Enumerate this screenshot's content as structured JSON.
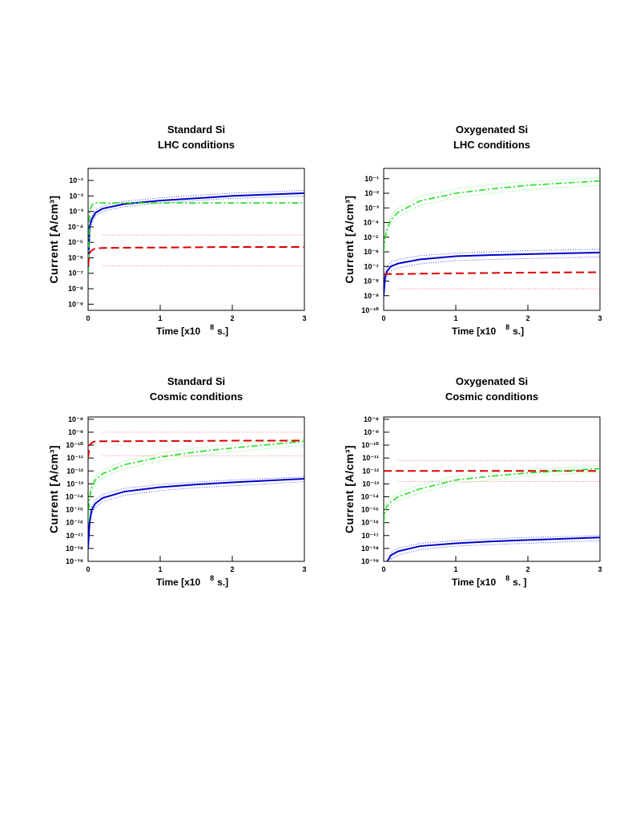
{
  "chart_data": [
    {
      "type": "line",
      "title": "Standard Si",
      "subtitle": "LHC conditions",
      "x_label": "Time [x10",
      "x_label_exponent": "8",
      "x_label_unit": "s.]",
      "y_label": "Current [A/cm³]",
      "log_y": true,
      "xlim": [
        0,
        3
      ],
      "xticks": [
        0,
        1,
        2,
        3
      ],
      "ylim": [
        4e-10,
        0.6
      ],
      "yticks": [
        {
          "value": 0.1,
          "label": "10⁻¹"
        },
        {
          "value": 0.01,
          "label": "10⁻²"
        },
        {
          "value": 0.001,
          "label": "10⁻³"
        },
        {
          "value": 0.0001,
          "label": "10⁻⁴"
        },
        {
          "value": 1e-05,
          "label": "10⁻⁵"
        },
        {
          "value": 1e-06,
          "label": "10⁻⁶"
        },
        {
          "value": 1e-07,
          "label": "10⁻⁷"
        },
        {
          "value": 1e-08,
          "label": "10⁻⁸"
        },
        {
          "value": 1e-09,
          "label": "10⁻⁹"
        }
      ],
      "x": [
        0,
        0.02,
        0.05,
        0.1,
        0.2,
        0.5,
        1,
        1.5,
        2,
        3
      ],
      "series": [
        {
          "color": "#3333ff",
          "dash": "dotted",
          "values": [
            null,
            0.0002,
            0.0005,
            0.0012,
            0.0022,
            0.0045,
            0.0075,
            0.011,
            0.015,
            0.023
          ]
        },
        {
          "color": "#3333ff",
          "dash": "dotted",
          "values": [
            null,
            5e-05,
            0.00015,
            0.0005,
            0.001,
            0.002,
            0.0035,
            0.005,
            0.007,
            0.01
          ]
        },
        {
          "color": "#ff6666",
          "dash": "dotted",
          "values": [
            null,
            null,
            null,
            null,
            3e-05,
            3e-05,
            3e-05,
            3e-05,
            3e-05,
            3e-05
          ]
        },
        {
          "color": "#ff6666",
          "dash": "dotted",
          "values": [
            null,
            null,
            null,
            null,
            3e-07,
            3e-07,
            3e-07,
            3e-07,
            3e-07,
            3e-07
          ]
        },
        {
          "color": "#0000c8",
          "dash": "solid",
          "values": [
            1e-07,
            0.0001,
            0.0003,
            0.0008,
            0.0015,
            0.003,
            0.005,
            0.007,
            0.01,
            0.015
          ]
        },
        {
          "color": "#22dd22",
          "dash": "dashdot",
          "values": [
            1e-07,
            0.001,
            0.0025,
            0.0035,
            0.0035,
            0.0035,
            0.0035,
            0.0035,
            0.0035,
            0.0035
          ]
        },
        {
          "color": "#dd0000",
          "dash": "dashed",
          "values": [
            3e-07,
            2e-06,
            3e-06,
            4e-06,
            4.3e-06,
            4.5e-06,
            4.6e-06,
            4.8e-06,
            5e-06,
            5e-06
          ]
        }
      ]
    },
    {
      "type": "line",
      "title": "Oxygenated Si",
      "subtitle": "LHC conditions",
      "x_label": "Time [x10",
      "x_label_exponent": "8",
      "x_label_unit": "s.]",
      "y_label": "Current [A/cm³]",
      "log_y": true,
      "xlim": [
        0,
        3
      ],
      "xticks": [
        0,
        1,
        2,
        3
      ],
      "ylim": [
        1e-10,
        0.5
      ],
      "yticks": [
        {
          "value": 0.1,
          "label": "10⁻¹"
        },
        {
          "value": 0.01,
          "label": "10⁻²"
        },
        {
          "value": 0.001,
          "label": "10⁻³"
        },
        {
          "value": 0.0001,
          "label": "10⁻⁴"
        },
        {
          "value": 1e-05,
          "label": "10⁻⁵"
        },
        {
          "value": 1e-06,
          "label": "10⁻⁶"
        },
        {
          "value": 1e-07,
          "label": "10⁻⁷"
        },
        {
          "value": 1e-08,
          "label": "10⁻⁸"
        },
        {
          "value": 1e-09,
          "label": "10⁻⁹"
        },
        {
          "value": 1e-10,
          "label": "10⁻¹⁰"
        }
      ],
      "x": [
        0,
        0.02,
        0.05,
        0.1,
        0.2,
        0.5,
        1,
        1.5,
        2,
        3
      ],
      "series": [
        {
          "color": "#66ee66",
          "dash": "dotted",
          "values": [
            null,
            2e-05,
            8e-05,
            0.0003,
            0.001,
            0.006,
            0.02,
            0.04,
            0.06,
            0.12
          ]
        },
        {
          "color": "#66ee66",
          "dash": "dotted",
          "values": [
            null,
            5e-06,
            2e-05,
            8e-05,
            0.00025,
            0.0015,
            0.005,
            0.01,
            0.018,
            0.035
          ]
        },
        {
          "color": "#3333ff",
          "dash": "dotted",
          "values": [
            null,
            4e-08,
            1e-07,
            2e-07,
            3e-07,
            5.5e-07,
            8e-07,
            1e-06,
            1.2e-06,
            1.5e-06
          ]
        },
        {
          "color": "#3333ff",
          "dash": "dotted",
          "values": [
            null,
            1e-08,
            2.5e-08,
            5e-08,
            8e-08,
            1.5e-07,
            2.5e-07,
            3e-07,
            3.5e-07,
            4.5e-07
          ]
        },
        {
          "color": "#ff6666",
          "dash": "dotted",
          "values": [
            null,
            null,
            null,
            null,
            3e-09,
            3e-09,
            3e-09,
            3e-09,
            3e-09,
            3e-09
          ]
        },
        {
          "color": "#22dd22",
          "dash": "dashdot",
          "values": [
            1e-06,
            1e-05,
            4e-05,
            0.00015,
            0.0005,
            0.003,
            0.01,
            0.02,
            0.035,
            0.07
          ]
        },
        {
          "color": "#0000c8",
          "dash": "solid",
          "values": [
            1e-09,
            2e-08,
            5e-08,
            1e-07,
            1.6e-07,
            3e-07,
            5e-07,
            6e-07,
            7e-07,
            9e-07
          ]
        },
        {
          "color": "#dd0000",
          "dash": "dashed",
          "values": [
            3e-08,
            3e-08,
            3e-08,
            3e-08,
            3e-08,
            3.2e-08,
            3.4e-08,
            3.6e-08,
            3.8e-08,
            4e-08
          ]
        }
      ]
    },
    {
      "type": "line",
      "title": "Standard Si",
      "subtitle": "Cosmic conditions",
      "x_label": "Time [x10",
      "x_label_exponent": "8",
      "x_label_unit": "s.]",
      "y_label": "Current [A/cm³]",
      "log_y": true,
      "xlim": [
        0,
        3
      ],
      "xticks": [
        0,
        1,
        2,
        3
      ],
      "ylim": [
        1e-19,
        1.5e-08
      ],
      "yticks": [
        {
          "value": 1e-08,
          "label": "10⁻⁸"
        },
        {
          "value": 1e-09,
          "label": "10⁻⁹"
        },
        {
          "value": 1e-10,
          "label": "10⁻¹⁰"
        },
        {
          "value": 1e-11,
          "label": "10⁻¹¹"
        },
        {
          "value": 1e-12,
          "label": "10⁻¹²"
        },
        {
          "value": 1e-13,
          "label": "10⁻¹³"
        },
        {
          "value": 1e-14,
          "label": "10⁻¹⁴"
        },
        {
          "value": 1e-15,
          "label": "10⁻¹⁵"
        },
        {
          "value": 1e-16,
          "label": "10⁻¹⁶"
        },
        {
          "value": 1e-17,
          "label": "10⁻¹⁷"
        },
        {
          "value": 1e-18,
          "label": "10⁻¹⁸"
        },
        {
          "value": 1e-19,
          "label": "10⁻¹⁹"
        }
      ],
      "x": [
        0,
        0.02,
        0.05,
        0.1,
        0.2,
        0.5,
        1,
        1.5,
        2,
        3
      ],
      "series": [
        {
          "color": "#ff6666",
          "dash": "dotted",
          "values": [
            null,
            null,
            null,
            null,
            1e-09,
            1e-09,
            1e-09,
            1e-09,
            1e-09,
            1e-09
          ]
        },
        {
          "color": "#ff6666",
          "dash": "dotted",
          "values": [
            null,
            null,
            null,
            null,
            1.5e-11,
            1.5e-11,
            1.5e-11,
            1.5e-11,
            1.5e-11,
            1.5e-11
          ]
        },
        {
          "color": "#66ee66",
          "dash": "dotted",
          "values": [
            null,
            2e-14,
            1e-13,
            4e-13,
            1.2e-12,
            6e-12,
            2.5e-11,
            6e-11,
            1.2e-10,
            3e-10
          ]
        },
        {
          "color": "#66ee66",
          "dash": "dotted",
          "values": [
            null,
            5e-15,
            2.5e-14,
            1e-13,
            3e-13,
            1.5e-12,
            6e-12,
            1.5e-11,
            3e-11,
            1e-10
          ]
        },
        {
          "color": "#3333ff",
          "dash": "dotted",
          "values": [
            null,
            2e-16,
            2e-15,
            6e-15,
            1.5e-14,
            4.5e-14,
            9e-14,
            1.4e-13,
            2e-13,
            3.5e-13
          ]
        },
        {
          "color": "#3333ff",
          "dash": "dotted",
          "values": [
            null,
            5e-17,
            5e-16,
            1.5e-15,
            4e-15,
            1.3e-14,
            3e-14,
            5e-14,
            7e-14,
            1.5e-13
          ]
        },
        {
          "color": "#dd0000",
          "dash": "dashed",
          "values": [
            1e-11,
            1e-10,
            1.5e-10,
            2e-10,
            2e-10,
            2e-10,
            2.1e-10,
            2.1e-10,
            2.2e-10,
            2.2e-10
          ]
        },
        {
          "color": "#22dd22",
          "dash": "dashdot",
          "values": [
            1e-16,
            1e-14,
            5e-14,
            2e-13,
            6e-13,
            3e-12,
            1.2e-11,
            3e-11,
            6e-11,
            2e-10
          ]
        },
        {
          "color": "#0000c8",
          "dash": "solid",
          "values": [
            1e-18,
            1e-16,
            1e-15,
            3e-15,
            8e-15,
            2.5e-14,
            5.5e-14,
            9e-14,
            1.3e-13,
            2.5e-13
          ]
        }
      ]
    },
    {
      "type": "line",
      "title": "Oxygenated Si",
      "subtitle": "Cosmic conditions",
      "x_label": "Time [x10",
      "x_label_exponent": "8",
      "x_label_unit": "s. ]",
      "y_label": "Current [A/cm³]",
      "log_y": true,
      "xlim": [
        0,
        3
      ],
      "xticks": [
        0,
        1,
        2,
        3
      ],
      "ylim": [
        1e-19,
        1.5e-08
      ],
      "yticks": [
        {
          "value": 1e-08,
          "label": "10⁻⁸"
        },
        {
          "value": 1e-09,
          "label": "10⁻⁹"
        },
        {
          "value": 1e-10,
          "label": "10⁻¹⁰"
        },
        {
          "value": 1e-11,
          "label": "10⁻¹¹"
        },
        {
          "value": 1e-12,
          "label": "10⁻¹²"
        },
        {
          "value": 1e-13,
          "label": "10⁻¹³"
        },
        {
          "value": 1e-14,
          "label": "10⁻¹⁴"
        },
        {
          "value": 1e-15,
          "label": "10⁻¹⁵"
        },
        {
          "value": 1e-16,
          "label": "10⁻¹⁶"
        },
        {
          "value": 1e-17,
          "label": "10⁻¹⁷"
        },
        {
          "value": 1e-18,
          "label": "10⁻¹⁸"
        },
        {
          "value": 1e-19,
          "label": "10⁻¹⁹"
        }
      ],
      "x": [
        0,
        0.02,
        0.05,
        0.1,
        0.2,
        0.5,
        1,
        1.5,
        2,
        3
      ],
      "series": [
        {
          "color": "#ff6666",
          "dash": "dotted",
          "values": [
            null,
            null,
            null,
            null,
            6e-12,
            6e-12,
            6e-12,
            6e-12,
            6e-12,
            6e-12
          ]
        },
        {
          "color": "#ff6666",
          "dash": "dotted",
          "values": [
            null,
            null,
            null,
            null,
            1.5e-13,
            1.5e-13,
            1.5e-13,
            1.5e-13,
            1.5e-13,
            1.5e-13
          ]
        },
        {
          "color": "#66ee66",
          "dash": "dotted",
          "values": [
            null,
            2e-15,
            4e-15,
            8e-15,
            2e-14,
            8e-14,
            4e-13,
            8e-13,
            1.3e-12,
            2.5e-12
          ]
        },
        {
          "color": "#66ee66",
          "dash": "dotted",
          "values": [
            null,
            5e-16,
            1e-15,
            2e-15,
            5e-15,
            2e-14,
            1e-13,
            2e-13,
            4e-13,
            8e-13
          ]
        },
        {
          "color": "#3333ff",
          "dash": "dotted",
          "values": [
            null,
            null,
            null,
            5e-19,
            1e-18,
            2.5e-18,
            4e-18,
            5.5e-18,
            7e-18,
            1e-17
          ]
        },
        {
          "color": "#3333ff",
          "dash": "dotted",
          "values": [
            null,
            null,
            null,
            1.5e-19,
            3e-19,
            8e-19,
            1.5e-18,
            2e-18,
            2.5e-18,
            4e-18
          ]
        },
        {
          "color": "#dd0000",
          "dash": "dashed",
          "values": [
            1e-12,
            1e-12,
            1e-12,
            1e-12,
            1e-12,
            1e-12,
            1e-12,
            1e-12,
            1e-12,
            1e-12
          ]
        },
        {
          "color": "#22dd22",
          "dash": "dashdot",
          "values": [
            1e-16,
            1e-15,
            2e-15,
            4e-15,
            1e-14,
            4e-14,
            2e-13,
            4e-13,
            7e-13,
            1.5e-12
          ]
        },
        {
          "color": "#0000c8",
          "dash": "solid",
          "values": [
            null,
            null,
            1e-19,
            3e-19,
            6e-19,
            1.5e-18,
            2.5e-18,
            3.5e-18,
            4.5e-18,
            7e-18
          ]
        }
      ]
    }
  ]
}
